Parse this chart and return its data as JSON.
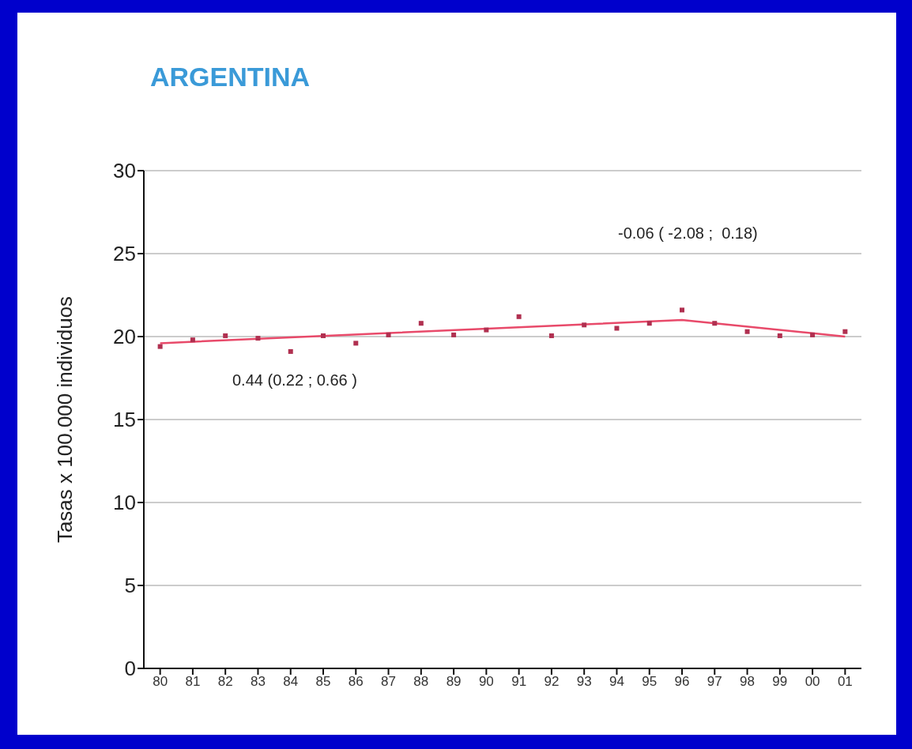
{
  "chart_data": {
    "type": "scatter",
    "title": "ARGENTINA",
    "ylabel": "Tasas x 100.000 individuos",
    "categories": [
      "80",
      "81",
      "82",
      "83",
      "84",
      "85",
      "86",
      "87",
      "88",
      "89",
      "90",
      "91",
      "92",
      "93",
      "94",
      "95",
      "96",
      "97",
      "98",
      "99",
      "00",
      "01"
    ],
    "series": [
      {
        "color": "#b03050",
        "marker": "square",
        "values": [
          19.4,
          19.8,
          20.05,
          19.9,
          19.1,
          20.05,
          19.6,
          20.1,
          20.8,
          20.1,
          20.4,
          21.2,
          20.05,
          20.7,
          20.5,
          20.8,
          21.6,
          20.8,
          20.3,
          20.05,
          20.1,
          20.3
        ]
      },
      {
        "type": "line",
        "color": "#e84a6a",
        "line_style": "solid",
        "x": [
          "80",
          "96",
          "01"
        ],
        "values": [
          19.6,
          21.0,
          20.0
        ]
      }
    ],
    "ylim": [
      0,
      30
    ],
    "yticks": [
      0,
      5,
      10,
      15,
      20,
      25,
      30
    ],
    "grid": "y",
    "legend": false,
    "annotations": [
      "-0.06 ( -2.08 ;  0.18)",
      "0.44 (0.22 ; 0.66 )"
    ]
  }
}
